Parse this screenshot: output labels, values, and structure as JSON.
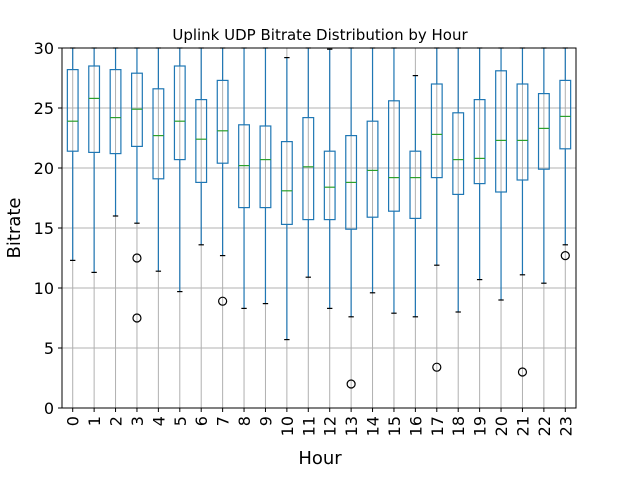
{
  "chart_data": {
    "type": "box",
    "title": "Uplink UDP Bitrate Distribution by Hour",
    "xlabel": "Hour",
    "ylabel": "Bitrate",
    "ylim": [
      0,
      30
    ],
    "yticks": [
      0,
      5,
      10,
      15,
      20,
      25,
      30
    ],
    "grid": true,
    "colors": {
      "box": "#1f77b4",
      "median": "#2ca02c",
      "grid": "#b0b0b0",
      "outlier": "#000000"
    },
    "categories": [
      "0",
      "1",
      "2",
      "3",
      "4",
      "5",
      "6",
      "7",
      "8",
      "9",
      "10",
      "11",
      "12",
      "13",
      "14",
      "15",
      "16",
      "17",
      "18",
      "19",
      "20",
      "21",
      "22",
      "23"
    ],
    "boxes": [
      {
        "hour": "0",
        "whislo": 12.3,
        "q1": 21.4,
        "med": 23.9,
        "q3": 28.2,
        "whishi": 30,
        "fliers": []
      },
      {
        "hour": "1",
        "whislo": 11.3,
        "q1": 21.3,
        "med": 25.8,
        "q3": 28.5,
        "whishi": 30,
        "fliers": []
      },
      {
        "hour": "2",
        "whislo": 16.0,
        "q1": 21.2,
        "med": 24.2,
        "q3": 28.2,
        "whishi": 30,
        "fliers": []
      },
      {
        "hour": "3",
        "whislo": 15.4,
        "q1": 21.8,
        "med": 24.9,
        "q3": 27.9,
        "whishi": 30,
        "fliers": [
          12.5,
          7.5
        ]
      },
      {
        "hour": "4",
        "whislo": 11.4,
        "q1": 19.1,
        "med": 22.7,
        "q3": 26.6,
        "whishi": 30,
        "fliers": []
      },
      {
        "hour": "5",
        "whislo": 9.7,
        "q1": 20.7,
        "med": 23.9,
        "q3": 28.5,
        "whishi": 30,
        "fliers": []
      },
      {
        "hour": "6",
        "whislo": 13.6,
        "q1": 18.8,
        "med": 22.4,
        "q3": 25.7,
        "whishi": 30,
        "fliers": []
      },
      {
        "hour": "7",
        "whislo": 12.7,
        "q1": 20.4,
        "med": 23.1,
        "q3": 27.3,
        "whishi": 30,
        "fliers": [
          8.9
        ]
      },
      {
        "hour": "8",
        "whislo": 8.3,
        "q1": 16.7,
        "med": 20.2,
        "q3": 23.6,
        "whishi": 30,
        "fliers": []
      },
      {
        "hour": "9",
        "whislo": 8.7,
        "q1": 16.7,
        "med": 20.7,
        "q3": 23.5,
        "whishi": 30,
        "fliers": []
      },
      {
        "hour": "10",
        "whislo": 5.7,
        "q1": 15.3,
        "med": 18.1,
        "q3": 22.2,
        "whishi": 29.2,
        "fliers": []
      },
      {
        "hour": "11",
        "whislo": 10.9,
        "q1": 15.7,
        "med": 20.1,
        "q3": 24.2,
        "whishi": 30,
        "fliers": []
      },
      {
        "hour": "12",
        "whislo": 8.3,
        "q1": 15.7,
        "med": 18.4,
        "q3": 21.4,
        "whishi": 29.9,
        "fliers": []
      },
      {
        "hour": "13",
        "whislo": 7.6,
        "q1": 14.9,
        "med": 18.8,
        "q3": 22.7,
        "whishi": 30,
        "fliers": [
          2.0
        ]
      },
      {
        "hour": "14",
        "whislo": 9.6,
        "q1": 15.9,
        "med": 19.8,
        "q3": 23.9,
        "whishi": 30,
        "fliers": []
      },
      {
        "hour": "15",
        "whislo": 7.9,
        "q1": 16.4,
        "med": 19.2,
        "q3": 25.6,
        "whishi": 30,
        "fliers": []
      },
      {
        "hour": "16",
        "whislo": 7.6,
        "q1": 15.8,
        "med": 19.2,
        "q3": 21.4,
        "whishi": 27.7,
        "fliers": []
      },
      {
        "hour": "17",
        "whislo": 11.9,
        "q1": 19.2,
        "med": 22.8,
        "q3": 27.0,
        "whishi": 30,
        "fliers": [
          3.4
        ]
      },
      {
        "hour": "18",
        "whislo": 8.0,
        "q1": 17.8,
        "med": 20.7,
        "q3": 24.6,
        "whishi": 30,
        "fliers": []
      },
      {
        "hour": "19",
        "whislo": 10.7,
        "q1": 18.7,
        "med": 20.8,
        "q3": 25.7,
        "whishi": 30,
        "fliers": []
      },
      {
        "hour": "20",
        "whislo": 9.0,
        "q1": 18.0,
        "med": 22.3,
        "q3": 28.1,
        "whishi": 30,
        "fliers": []
      },
      {
        "hour": "21",
        "whislo": 11.1,
        "q1": 19.0,
        "med": 22.3,
        "q3": 27.0,
        "whishi": 30,
        "fliers": [
          3.0
        ]
      },
      {
        "hour": "22",
        "whislo": 10.4,
        "q1": 19.9,
        "med": 23.3,
        "q3": 26.2,
        "whishi": 30,
        "fliers": []
      },
      {
        "hour": "23",
        "whislo": 13.6,
        "q1": 21.6,
        "med": 24.3,
        "q3": 27.3,
        "whishi": 30,
        "fliers": [
          12.7
        ]
      }
    ]
  }
}
